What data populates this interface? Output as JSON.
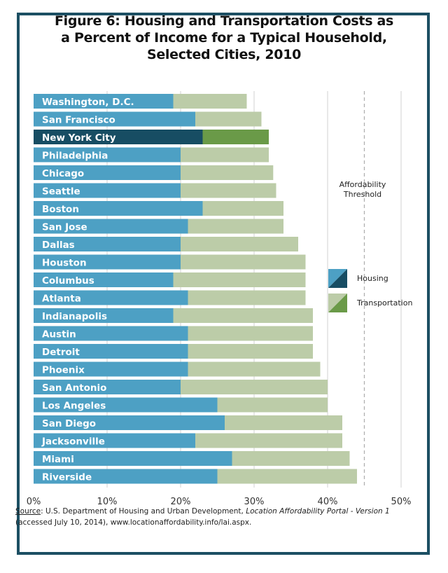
{
  "title_lines": [
    "Figure 6: Housing and Transportation Costs as",
    "a Percent of Income for a Typical Household,",
    "Selected Cities, 2010"
  ],
  "threshold_label_lines": [
    "Affordability",
    "Threshold"
  ],
  "source": {
    "label": "Source",
    "text1": ": U.S. Department of Housing and Urban Development, ",
    "italic": "Location Affordability Portal - Version 1",
    "text2": "(accessed July 10, 2014), www.locationaffordability.info/lai.aspx."
  },
  "colors": {
    "housing": "#4da0c4",
    "transportation": "#bccca8",
    "housing_highlight": "#174d63",
    "transportation_highlight": "#6a9a48",
    "frame": "#1c4f63"
  },
  "chart_data": {
    "type": "bar",
    "orientation": "horizontal",
    "stacked": true,
    "categories": [
      "Washington, D.C.",
      "San Francisco",
      "New York City",
      "Philadelphia",
      "Chicago",
      "Seattle",
      "Boston",
      "San Jose",
      "Dallas",
      "Houston",
      "Columbus",
      "Atlanta",
      "Indianapolis",
      "Austin",
      "Detroit",
      "Phoenix",
      "San Antonio",
      "Los Angeles",
      "San Diego",
      "Jacksonville",
      "Miami",
      "Riverside"
    ],
    "highlight": "New York City",
    "series": [
      {
        "name": "Housing",
        "values": [
          19,
          22,
          23,
          20,
          20,
          20,
          23,
          21,
          20,
          20,
          19,
          21,
          19,
          21,
          21,
          21,
          20,
          25,
          26,
          22,
          27,
          25
        ]
      },
      {
        "name": "Transportation",
        "values": [
          10,
          9,
          9,
          12,
          12.6,
          13,
          11,
          13,
          16,
          17,
          18,
          16,
          19,
          17,
          17,
          18,
          20,
          15,
          16,
          20,
          16,
          19
        ]
      }
    ],
    "xlim": [
      0,
      50
    ],
    "xticks": [
      0,
      10,
      20,
      30,
      40,
      50
    ],
    "xtick_labels": [
      "0%",
      "10%",
      "20%",
      "30%",
      "40%",
      "50%"
    ],
    "threshold": 45,
    "grid": true,
    "legend_position": "right"
  }
}
